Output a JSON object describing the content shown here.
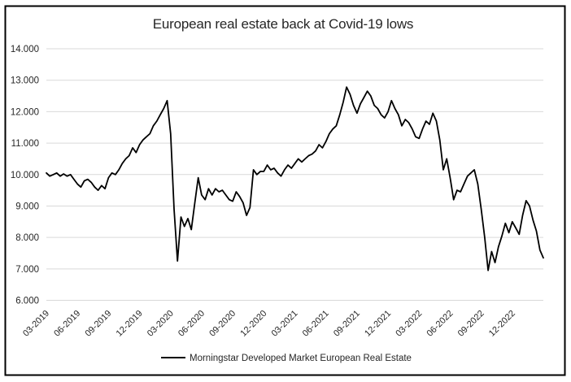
{
  "chart_data": {
    "type": "line",
    "title": "European real estate back at Covid-19 lows",
    "ylim": [
      6,
      14
    ],
    "y_ticks": [
      {
        "value": 14,
        "label": "14.000"
      },
      {
        "value": 13,
        "label": "13.000"
      },
      {
        "value": 12,
        "label": "12.000"
      },
      {
        "value": 11,
        "label": "11.000"
      },
      {
        "value": 10,
        "label": "10.000"
      },
      {
        "value": 9,
        "label": "9.000"
      },
      {
        "value": 8,
        "label": "8.000"
      },
      {
        "value": 7,
        "label": "7.000"
      },
      {
        "value": 6,
        "label": "6.000"
      }
    ],
    "x_tick_labels": [
      "03-2019",
      "06-2019",
      "09-2019",
      "12-2019",
      "03-2020",
      "06-2020",
      "09-2020",
      "12-2020",
      "03-2021",
      "06-2021",
      "09-2021",
      "12-2021",
      "03-2022",
      "06-2022",
      "09-2022",
      "12-2022"
    ],
    "x_months_per_tick": 3,
    "x_total_months": 48,
    "points_per_month": 3,
    "grid": "horizontal",
    "legend_position": "bottom-center",
    "series": [
      {
        "name": "Morningstar Developed Market European Real Estate",
        "color": "#000000",
        "values": [
          10.05,
          9.95,
          10.0,
          10.05,
          9.95,
          10.02,
          9.95,
          10.0,
          9.85,
          9.7,
          9.6,
          9.8,
          9.85,
          9.75,
          9.6,
          9.5,
          9.65,
          9.55,
          9.9,
          10.05,
          10.0,
          10.15,
          10.35,
          10.5,
          10.6,
          10.85,
          10.7,
          10.95,
          11.1,
          11.2,
          11.3,
          11.55,
          11.7,
          11.9,
          12.1,
          12.35,
          11.3,
          8.9,
          7.25,
          8.65,
          8.35,
          8.6,
          8.25,
          9.1,
          9.9,
          9.35,
          9.2,
          9.55,
          9.35,
          9.55,
          9.45,
          9.5,
          9.35,
          9.2,
          9.15,
          9.45,
          9.3,
          9.1,
          8.7,
          8.95,
          10.15,
          10.0,
          10.1,
          10.1,
          10.3,
          10.15,
          10.2,
          10.05,
          9.95,
          10.15,
          10.3,
          10.2,
          10.35,
          10.5,
          10.4,
          10.5,
          10.6,
          10.65,
          10.75,
          10.95,
          10.85,
          11.05,
          11.3,
          11.45,
          11.55,
          11.9,
          12.3,
          12.78,
          12.55,
          12.2,
          11.95,
          12.25,
          12.45,
          12.65,
          12.5,
          12.2,
          12.1,
          11.9,
          11.8,
          12.0,
          12.35,
          12.1,
          11.9,
          11.55,
          11.75,
          11.65,
          11.45,
          11.2,
          11.15,
          11.45,
          11.7,
          11.6,
          11.95,
          11.7,
          11.1,
          10.15,
          10.5,
          9.9,
          9.2,
          9.5,
          9.45,
          9.7,
          9.95,
          10.05,
          10.15,
          9.7,
          8.9,
          8.0,
          6.95,
          7.55,
          7.2,
          7.7,
          8.05,
          8.45,
          8.15,
          8.5,
          8.3,
          8.1,
          8.7,
          9.17,
          9.0,
          8.55,
          8.2,
          7.6,
          7.35
        ]
      }
    ]
  },
  "colors": {
    "line": "#000000",
    "grid": "#d9d9d9",
    "text": "#262626",
    "frame": "#000000",
    "background": "#ffffff"
  }
}
